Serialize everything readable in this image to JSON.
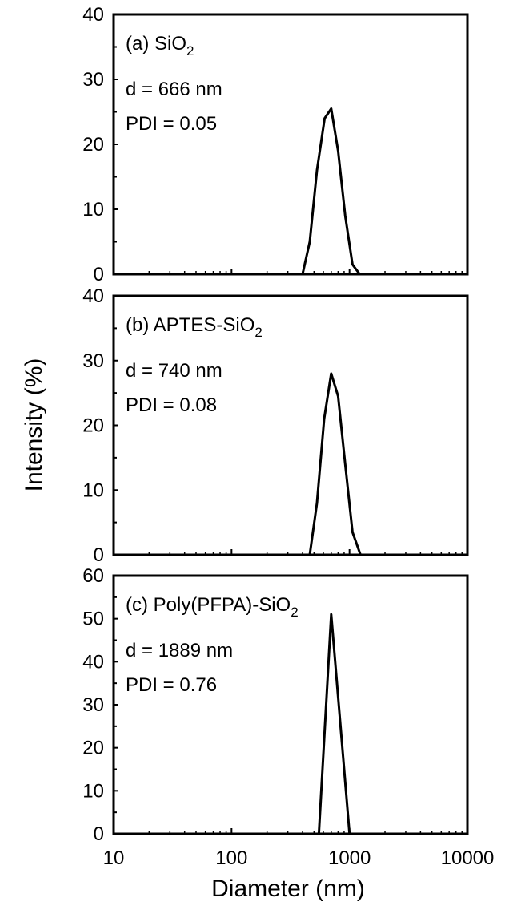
{
  "chart_data": [
    {
      "type": "line",
      "panel": "a",
      "label_prefix": "(a) SiO",
      "label_sub": "2",
      "annotations": [
        "d = 666 nm",
        "PDI = 0.05"
      ],
      "x": [
        400,
        460,
        530,
        615,
        700,
        800,
        920,
        1060,
        1220
      ],
      "y": [
        0,
        5,
        16,
        24,
        25.5,
        19,
        9,
        1.5,
        0
      ],
      "xlim": [
        10,
        10000
      ],
      "xscale": "log",
      "ylim": [
        0,
        40
      ],
      "yticks": [
        0,
        10,
        20,
        30,
        40
      ],
      "grid": false
    },
    {
      "type": "line",
      "panel": "b",
      "label_prefix": "(b) APTES-SiO",
      "label_sub": "2",
      "annotations": [
        "d = 740 nm",
        "PDI = 0.08"
      ],
      "x": [
        460,
        530,
        610,
        700,
        800,
        920,
        1060,
        1240
      ],
      "y": [
        0,
        8,
        21,
        28,
        24.5,
        14,
        3.5,
        0
      ],
      "xlim": [
        10,
        10000
      ],
      "xscale": "log",
      "ylim": [
        0,
        40
      ],
      "yticks": [
        0,
        10,
        20,
        30,
        40
      ],
      "grid": false
    },
    {
      "type": "line",
      "panel": "c",
      "label_prefix": "(c) Poly(PFPA)-SiO",
      "label_sub": "2",
      "annotations": [
        "d = 1889 nm",
        "PDI = 0.76"
      ],
      "x": [
        550,
        700,
        1000
      ],
      "y": [
        0,
        51,
        0
      ],
      "xlim": [
        10,
        10000
      ],
      "xscale": "log",
      "ylim": [
        0,
        60
      ],
      "yticks": [
        0,
        10,
        20,
        30,
        40,
        50,
        60
      ],
      "grid": false
    }
  ],
  "axes": {
    "xlabel": "Diameter (nm)",
    "ylabel": "Intensity (%)",
    "xticks": [
      10,
      100,
      1000,
      10000
    ],
    "xtick_labels": [
      "10",
      "100",
      "1000",
      "10000"
    ]
  }
}
